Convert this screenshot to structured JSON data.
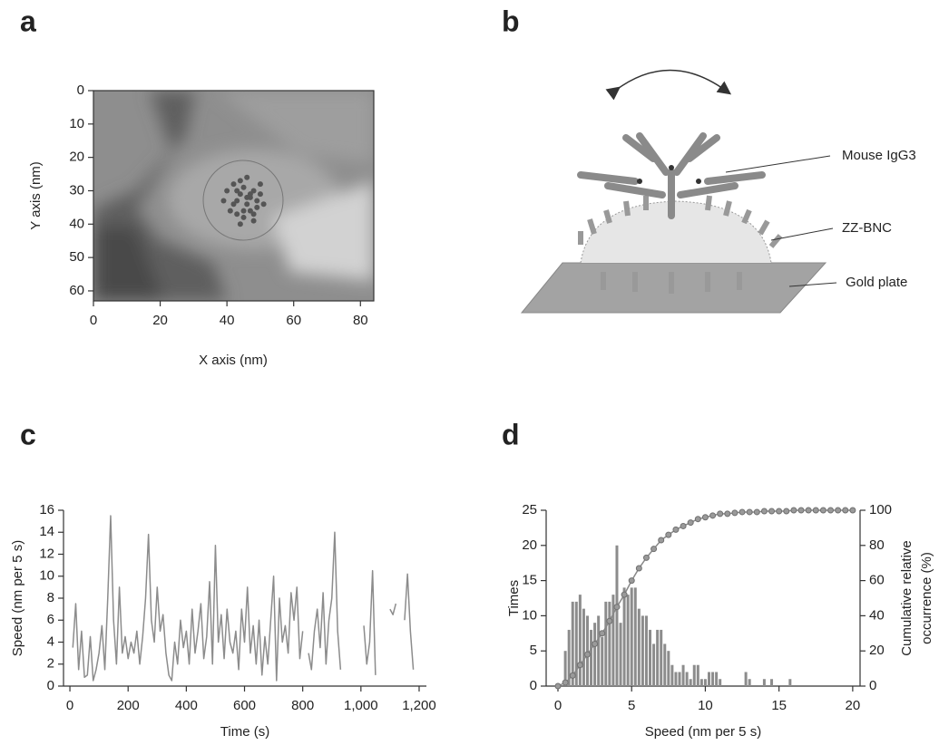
{
  "diagram": {
    "panel": "b",
    "labels": [
      "Mouse IgG3",
      "ZZ-BNC",
      "Gold plate"
    ]
  },
  "chart_data": [
    {
      "panel": "a",
      "type": "scatter",
      "xlabel": "X axis (nm)",
      "ylabel": "Y axis (nm)",
      "xlim": [
        0,
        84
      ],
      "ylim": [
        63,
        0
      ],
      "xticks": [
        0,
        20,
        40,
        60,
        80
      ],
      "yticks": [
        0,
        10,
        20,
        30,
        40,
        50,
        60
      ],
      "color": "#555555",
      "x": [
        40,
        42,
        43,
        44,
        45,
        46,
        47,
        48,
        49,
        50,
        41,
        43,
        45,
        47,
        49,
        44,
        46,
        48,
        42,
        50,
        45,
        47,
        43,
        51,
        39,
        46,
        48,
        44
      ],
      "values": [
        30,
        28,
        33,
        31,
        29,
        34,
        32,
        30,
        35,
        31,
        36,
        37,
        38,
        36,
        33,
        27,
        26,
        39,
        34,
        28,
        36,
        31,
        30,
        34,
        33,
        32,
        37,
        40
      ]
    },
    {
      "panel": "c",
      "type": "line",
      "xlabel": "Time (s)",
      "ylabel": "Speed (nm per 5 s)",
      "xlim": [
        -22,
        1225
      ],
      "ylim": [
        0,
        16
      ],
      "xticks": [
        0,
        200,
        400,
        600,
        800,
        {
          "value": 1000,
          "label": "1,000"
        },
        {
          "value": 1200,
          "label": "1,200"
        }
      ],
      "yticks": [
        0,
        2,
        4,
        6,
        8,
        10,
        12,
        14,
        16
      ],
      "color": "#8c8c8c",
      "x": [
        10,
        20,
        30,
        40,
        50,
        60,
        70,
        80,
        90,
        100,
        110,
        120,
        130,
        140,
        150,
        160,
        170,
        180,
        190,
        200,
        210,
        220,
        230,
        240,
        250,
        260,
        270,
        280,
        290,
        300,
        310,
        320,
        330,
        340,
        350,
        360,
        370,
        380,
        390,
        400,
        410,
        420,
        430,
        440,
        450,
        460,
        470,
        480,
        490,
        500,
        510,
        520,
        530,
        540,
        550,
        560,
        570,
        580,
        590,
        600,
        610,
        620,
        630,
        640,
        650,
        660,
        670,
        680,
        690,
        700,
        710,
        720,
        730,
        740,
        750,
        760,
        770,
        780,
        790,
        800,
        810,
        820,
        830,
        840,
        850,
        860,
        870,
        880,
        890,
        900,
        910,
        920,
        930,
        940,
        950,
        960,
        970,
        980,
        990,
        1000,
        1010,
        1020,
        1030,
        1040,
        1050,
        1060,
        1070,
        1080,
        1090,
        1100,
        1110,
        1120,
        1130,
        1140,
        1150,
        1160,
        1170,
        1180
      ],
      "values": [
        3.5,
        7.5,
        1.5,
        5,
        0.8,
        1,
        4.5,
        0.5,
        1.5,
        3,
        5.5,
        1.5,
        8,
        15.5,
        6,
        2,
        9,
        3,
        4.5,
        2.5,
        4,
        3,
        5,
        2,
        4.5,
        8,
        13.8,
        6,
        4,
        9,
        5,
        6.5,
        3,
        1,
        0.5,
        4,
        2,
        6,
        3.5,
        5,
        2,
        7,
        3,
        5,
        7.5,
        2.5,
        4.5,
        9.5,
        2,
        12.8,
        4,
        6.5,
        2.5,
        7,
        4,
        3,
        5,
        1.5,
        7,
        4,
        9,
        3,
        5.5,
        2,
        6,
        1,
        4.5,
        2,
        6,
        10,
        0.5,
        8,
        4,
        5.5,
        3,
        8.5,
        6,
        9,
        2.5,
        5,
        null,
        3,
        1.5,
        5,
        7,
        3.5,
        8.5,
        2,
        6,
        8,
        14,
        5,
        1.5,
        null,
        null,
        null,
        null,
        null,
        null,
        null,
        5.5,
        2,
        4,
        10.5,
        1,
        null,
        null,
        null,
        null,
        7,
        6.5,
        7.5,
        null,
        null,
        6,
        10.2,
        5,
        1.5
      ]
    },
    {
      "panel": "d",
      "type": "bar",
      "xlabel": "Speed (nm per 5 s)",
      "ylabel": "Times",
      "y2label": [
        "Cumulative relative",
        "occurrence (%)"
      ],
      "xlim": [
        -0.8,
        20.5
      ],
      "ylim": [
        0,
        25
      ],
      "y2lim": [
        0,
        100
      ],
      "xticks": [
        0,
        5,
        10,
        15,
        20
      ],
      "yticks": [
        0,
        5,
        10,
        15,
        20,
        25
      ],
      "y2ticks": [
        0,
        20,
        40,
        60,
        80,
        100
      ],
      "series": [
        {
          "type": "bar",
          "color": "#8c8c8c",
          "x": [
            0.5,
            0.75,
            1,
            1.25,
            1.5,
            1.75,
            2,
            2.25,
            2.5,
            2.75,
            3,
            3.25,
            3.5,
            3.75,
            4,
            4.25,
            4.5,
            4.75,
            5,
            5.25,
            5.5,
            5.75,
            6,
            6.25,
            6.5,
            6.75,
            7,
            7.25,
            7.5,
            7.75,
            8,
            8.25,
            8.5,
            8.75,
            9,
            9.25,
            9.5,
            9.75,
            10,
            10.25,
            10.5,
            10.75,
            11,
            12.75,
            13,
            14,
            14.5,
            15.75
          ],
          "values": [
            5,
            8,
            12,
            12,
            13,
            11,
            10,
            8,
            9,
            10,
            7,
            12,
            12,
            13,
            20,
            9,
            14,
            13,
            14,
            14,
            11,
            10,
            10,
            8,
            6,
            8,
            8,
            6,
            5,
            3,
            2,
            2,
            3,
            2,
            1,
            3,
            3,
            1,
            1,
            2,
            2,
            2,
            1,
            2,
            1,
            1,
            1,
            1
          ]
        },
        {
          "type": "line",
          "axis": "y2",
          "color": "#888888",
          "x": [
            0,
            0.5,
            1,
            1.5,
            2,
            2.5,
            3,
            3.5,
            4,
            4.5,
            5,
            5.5,
            6,
            6.5,
            7,
            7.5,
            8,
            8.5,
            9,
            9.5,
            10,
            10.5,
            11,
            11.5,
            12,
            12.5,
            13,
            13.5,
            14,
            14.5,
            15,
            15.5,
            16,
            16.5,
            17,
            17.5,
            18,
            18.5,
            19,
            19.5,
            20
          ],
          "values": [
            0,
            2,
            6,
            12,
            18,
            24,
            30,
            37,
            45,
            52,
            60,
            67,
            73,
            78,
            83,
            86,
            89,
            91,
            93,
            95,
            96,
            97,
            98,
            98,
            98.5,
            99,
            99,
            99,
            99.5,
            99.5,
            99.5,
            99.5,
            100,
            100,
            100,
            100,
            100,
            100,
            100,
            100,
            100
          ]
        }
      ]
    }
  ]
}
